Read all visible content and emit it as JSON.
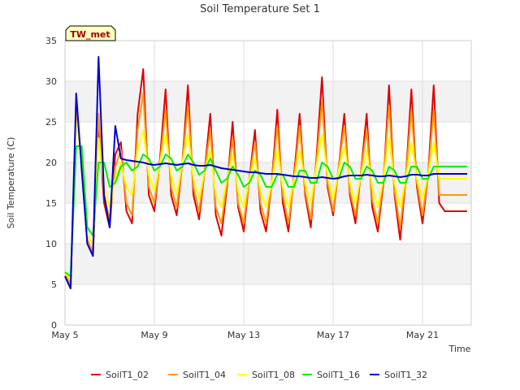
{
  "chart_data": {
    "type": "line",
    "title": "Soil Temperature Set 1",
    "xlabel": "Time",
    "ylabel": "Soil Temperature (C)",
    "site_tag": "TW_met",
    "ylim": [
      0,
      35
    ],
    "yticks": [
      0,
      5,
      10,
      15,
      20,
      25,
      30,
      35
    ],
    "xlim": [
      "2023-05-05",
      "2023-05-23"
    ],
    "xticks": [
      {
        "date": "2023-05-05",
        "label": "May 5"
      },
      {
        "date": "2023-05-09",
        "label": "May 9"
      },
      {
        "date": "2023-05-13",
        "label": "May 13"
      },
      {
        "date": "2023-05-17",
        "label": "May 17"
      },
      {
        "date": "2023-05-21",
        "label": "May 21"
      }
    ],
    "grid": true,
    "legend_position": "bottom",
    "series": [
      {
        "name": "SoilT1_02",
        "color": "#e00000",
        "x": [
          "2023-05-05",
          "2023-05-05T06:00",
          "2023-05-05T12:00",
          "2023-05-05T18:00",
          "2023-05-06",
          "2023-05-06T06:00",
          "2023-05-06T12:00",
          "2023-05-06T18:00",
          "2023-05-07",
          "2023-05-07T06:00",
          "2023-05-07T12:00",
          "2023-05-07T18:00",
          "2023-05-08",
          "2023-05-08T06:00",
          "2023-05-08T12:00",
          "2023-05-08T18:00",
          "2023-05-09",
          "2023-05-09T06:00",
          "2023-05-09T12:00",
          "2023-05-09T18:00",
          "2023-05-10",
          "2023-05-10T06:00",
          "2023-05-10T12:00",
          "2023-05-10T18:00",
          "2023-05-11",
          "2023-05-11T06:00",
          "2023-05-11T12:00",
          "2023-05-11T18:00",
          "2023-05-12",
          "2023-05-12T06:00",
          "2023-05-12T12:00",
          "2023-05-12T18:00",
          "2023-05-13",
          "2023-05-13T06:00",
          "2023-05-13T12:00",
          "2023-05-13T18:00",
          "2023-05-14",
          "2023-05-14T06:00",
          "2023-05-14T12:00",
          "2023-05-14T18:00",
          "2023-05-15",
          "2023-05-15T06:00",
          "2023-05-15T12:00",
          "2023-05-15T18:00",
          "2023-05-16",
          "2023-05-16T06:00",
          "2023-05-16T12:00",
          "2023-05-16T18:00",
          "2023-05-17",
          "2023-05-17T06:00",
          "2023-05-17T12:00",
          "2023-05-17T18:00",
          "2023-05-18",
          "2023-05-18T06:00",
          "2023-05-18T12:00",
          "2023-05-18T18:00",
          "2023-05-19",
          "2023-05-19T06:00",
          "2023-05-19T12:00",
          "2023-05-19T18:00",
          "2023-05-20",
          "2023-05-20T06:00",
          "2023-05-20T12:00",
          "2023-05-20T18:00",
          "2023-05-21",
          "2023-05-21T06:00",
          "2023-05-21T12:00",
          "2023-05-21T18:00",
          "2023-05-22",
          "2023-05-22T06:00",
          "2023-05-22T12:00",
          "2023-05-22T18:00",
          "2023-05-23"
        ],
        "y": [
          6.0,
          4.5,
          27.0,
          20.0,
          10.0,
          8.5,
          25.0,
          15.0,
          12.0,
          21.0,
          22.5,
          14.0,
          12.5,
          26.0,
          31.5,
          16.0,
          14.0,
          20.5,
          29.0,
          16.0,
          13.5,
          20.0,
          29.5,
          16.0,
          13.0,
          19.0,
          26.0,
          13.5,
          11.0,
          17.0,
          25.0,
          14.5,
          11.5,
          18.0,
          24.0,
          14.0,
          11.5,
          17.5,
          26.5,
          15.0,
          11.5,
          18.5,
          26.0,
          16.0,
          12.0,
          20.5,
          30.5,
          17.0,
          13.5,
          19.5,
          26.0,
          16.0,
          12.5,
          19.0,
          26.0,
          14.5,
          11.5,
          17.5,
          29.5,
          16.0,
          10.5,
          18.0,
          29.0,
          17.0,
          12.5,
          18.5,
          29.5,
          15.0,
          14.0,
          14.0,
          14.0,
          14.0,
          14.0
        ]
      },
      {
        "name": "SoilT1_04",
        "color": "#ff9900",
        "x": [
          "2023-05-05",
          "2023-05-05T06:00",
          "2023-05-05T12:00",
          "2023-05-05T18:00",
          "2023-05-06",
          "2023-05-06T06:00",
          "2023-05-06T12:00",
          "2023-05-06T18:00",
          "2023-05-07",
          "2023-05-07T06:00",
          "2023-05-07T12:00",
          "2023-05-07T18:00",
          "2023-05-08",
          "2023-05-08T06:00",
          "2023-05-08T12:00",
          "2023-05-08T18:00",
          "2023-05-09",
          "2023-05-09T06:00",
          "2023-05-09T12:00",
          "2023-05-09T18:00",
          "2023-05-10",
          "2023-05-10T06:00",
          "2023-05-10T12:00",
          "2023-05-10T18:00",
          "2023-05-11",
          "2023-05-11T06:00",
          "2023-05-11T12:00",
          "2023-05-11T18:00",
          "2023-05-12",
          "2023-05-12T06:00",
          "2023-05-12T12:00",
          "2023-05-12T18:00",
          "2023-05-13",
          "2023-05-13T06:00",
          "2023-05-13T12:00",
          "2023-05-13T18:00",
          "2023-05-14",
          "2023-05-14T06:00",
          "2023-05-14T12:00",
          "2023-05-14T18:00",
          "2023-05-15",
          "2023-05-15T06:00",
          "2023-05-15T12:00",
          "2023-05-15T18:00",
          "2023-05-16",
          "2023-05-16T06:00",
          "2023-05-16T12:00",
          "2023-05-16T18:00",
          "2023-05-17",
          "2023-05-17T06:00",
          "2023-05-17T12:00",
          "2023-05-17T18:00",
          "2023-05-18",
          "2023-05-18T06:00",
          "2023-05-18T12:00",
          "2023-05-18T18:00",
          "2023-05-19",
          "2023-05-19T06:00",
          "2023-05-19T12:00",
          "2023-05-19T18:00",
          "2023-05-20",
          "2023-05-20T06:00",
          "2023-05-20T12:00",
          "2023-05-20T18:00",
          "2023-05-21",
          "2023-05-21T06:00",
          "2023-05-21T12:00",
          "2023-05-21T18:00",
          "2023-05-22",
          "2023-05-22T06:00",
          "2023-05-22T12:00",
          "2023-05-22T18:00",
          "2023-05-23"
        ],
        "y": [
          6.5,
          5.0,
          26.5,
          20.0,
          10.5,
          9.0,
          26.0,
          16.0,
          13.0,
          19.5,
          21.5,
          15.0,
          13.5,
          24.0,
          28.5,
          17.0,
          15.0,
          20.0,
          26.5,
          17.0,
          14.5,
          20.0,
          27.0,
          17.0,
          14.0,
          19.0,
          24.0,
          14.5,
          12.5,
          17.5,
          23.0,
          15.0,
          12.5,
          18.0,
          22.5,
          15.0,
          12.5,
          17.5,
          24.5,
          16.0,
          12.5,
          18.0,
          24.5,
          16.5,
          13.0,
          20.0,
          27.5,
          17.5,
          14.0,
          19.5,
          24.5,
          16.5,
          13.5,
          19.0,
          24.0,
          15.5,
          12.5,
          18.0,
          27.0,
          16.5,
          12.0,
          18.0,
          26.5,
          17.5,
          13.5,
          18.5,
          26.5,
          16.0,
          16.0,
          16.0,
          16.0,
          16.0,
          16.0
        ]
      },
      {
        "name": "SoilT1_08",
        "color": "#ffff00",
        "x": [
          "2023-05-05",
          "2023-05-05T06:00",
          "2023-05-05T12:00",
          "2023-05-05T18:00",
          "2023-05-06",
          "2023-05-06T06:00",
          "2023-05-06T12:00",
          "2023-05-06T18:00",
          "2023-05-07",
          "2023-05-07T06:00",
          "2023-05-07T12:00",
          "2023-05-07T18:00",
          "2023-05-08",
          "2023-05-08T06:00",
          "2023-05-08T12:00",
          "2023-05-08T18:00",
          "2023-05-09",
          "2023-05-09T06:00",
          "2023-05-09T12:00",
          "2023-05-09T18:00",
          "2023-05-10",
          "2023-05-10T06:00",
          "2023-05-10T12:00",
          "2023-05-10T18:00",
          "2023-05-11",
          "2023-05-11T06:00",
          "2023-05-11T12:00",
          "2023-05-11T18:00",
          "2023-05-12",
          "2023-05-12T06:00",
          "2023-05-12T12:00",
          "2023-05-12T18:00",
          "2023-05-13",
          "2023-05-13T06:00",
          "2023-05-13T12:00",
          "2023-05-13T18:00",
          "2023-05-14",
          "2023-05-14T06:00",
          "2023-05-14T12:00",
          "2023-05-14T18:00",
          "2023-05-15",
          "2023-05-15T06:00",
          "2023-05-15T12:00",
          "2023-05-15T18:00",
          "2023-05-16",
          "2023-05-16T06:00",
          "2023-05-16T12:00",
          "2023-05-16T18:00",
          "2023-05-17",
          "2023-05-17T06:00",
          "2023-05-17T12:00",
          "2023-05-17T18:00",
          "2023-05-18",
          "2023-05-18T06:00",
          "2023-05-18T12:00",
          "2023-05-18T18:00",
          "2023-05-19",
          "2023-05-19T06:00",
          "2023-05-19T12:00",
          "2023-05-19T18:00",
          "2023-05-20",
          "2023-05-20T06:00",
          "2023-05-20T12:00",
          "2023-05-20T18:00",
          "2023-05-21",
          "2023-05-21T06:00",
          "2023-05-21T12:00",
          "2023-05-21T18:00",
          "2023-05-22",
          "2023-05-22T06:00",
          "2023-05-22T12:00",
          "2023-05-22T18:00",
          "2023-05-23"
        ],
        "y": [
          6.5,
          5.5,
          25.0,
          21.0,
          11.0,
          10.0,
          23.0,
          17.0,
          14.5,
          18.0,
          20.0,
          17.0,
          16.0,
          21.5,
          24.0,
          18.5,
          16.5,
          20.0,
          23.5,
          18.5,
          16.0,
          20.0,
          23.5,
          18.0,
          15.5,
          19.0,
          21.5,
          16.0,
          14.5,
          18.0,
          21.0,
          16.5,
          14.5,
          18.0,
          20.5,
          16.5,
          14.5,
          17.5,
          21.5,
          17.0,
          14.5,
          18.0,
          21.5,
          17.5,
          15.0,
          19.5,
          23.5,
          18.5,
          15.5,
          19.0,
          22.0,
          17.5,
          15.0,
          18.5,
          21.5,
          17.0,
          14.5,
          18.0,
          23.0,
          17.5,
          14.5,
          18.0,
          22.5,
          18.0,
          15.5,
          18.5,
          22.5,
          18.0,
          18.0,
          18.0,
          18.0,
          18.0,
          18.0
        ]
      },
      {
        "name": "SoilT1_16",
        "color": "#00ee00",
        "x": [
          "2023-05-05",
          "2023-05-05T06:00",
          "2023-05-05T12:00",
          "2023-05-05T18:00",
          "2023-05-06",
          "2023-05-06T06:00",
          "2023-05-06T12:00",
          "2023-05-06T18:00",
          "2023-05-07",
          "2023-05-07T06:00",
          "2023-05-07T12:00",
          "2023-05-07T18:00",
          "2023-05-08",
          "2023-05-08T06:00",
          "2023-05-08T12:00",
          "2023-05-08T18:00",
          "2023-05-09",
          "2023-05-09T06:00",
          "2023-05-09T12:00",
          "2023-05-09T18:00",
          "2023-05-10",
          "2023-05-10T06:00",
          "2023-05-10T12:00",
          "2023-05-10T18:00",
          "2023-05-11",
          "2023-05-11T06:00",
          "2023-05-11T12:00",
          "2023-05-11T18:00",
          "2023-05-12",
          "2023-05-12T06:00",
          "2023-05-12T12:00",
          "2023-05-12T18:00",
          "2023-05-13",
          "2023-05-13T06:00",
          "2023-05-13T12:00",
          "2023-05-13T18:00",
          "2023-05-14",
          "2023-05-14T06:00",
          "2023-05-14T12:00",
          "2023-05-14T18:00",
          "2023-05-15",
          "2023-05-15T06:00",
          "2023-05-15T12:00",
          "2023-05-15T18:00",
          "2023-05-16",
          "2023-05-16T06:00",
          "2023-05-16T12:00",
          "2023-05-16T18:00",
          "2023-05-17",
          "2023-05-17T06:00",
          "2023-05-17T12:00",
          "2023-05-17T18:00",
          "2023-05-18",
          "2023-05-18T06:00",
          "2023-05-18T12:00",
          "2023-05-18T18:00",
          "2023-05-19",
          "2023-05-19T06:00",
          "2023-05-19T12:00",
          "2023-05-19T18:00",
          "2023-05-20",
          "2023-05-20T06:00",
          "2023-05-20T12:00",
          "2023-05-20T18:00",
          "2023-05-21",
          "2023-05-21T06:00",
          "2023-05-21T12:00",
          "2023-05-21T18:00",
          "2023-05-22",
          "2023-05-22T06:00",
          "2023-05-22T12:00",
          "2023-05-22T18:00",
          "2023-05-23"
        ],
        "y": [
          6.5,
          6.0,
          22.0,
          22.0,
          12.0,
          11.0,
          20.0,
          20.0,
          17.0,
          17.5,
          19.5,
          20.0,
          19.0,
          19.5,
          21.0,
          20.5,
          19.0,
          19.5,
          21.0,
          20.5,
          19.0,
          19.5,
          21.0,
          20.0,
          18.5,
          19.0,
          20.5,
          19.0,
          17.5,
          18.0,
          19.5,
          18.5,
          17.0,
          17.5,
          19.0,
          18.5,
          17.0,
          17.0,
          18.5,
          18.5,
          17.0,
          17.0,
          19.0,
          19.0,
          17.5,
          17.5,
          20.0,
          19.5,
          18.0,
          18.0,
          20.0,
          19.5,
          18.0,
          18.0,
          19.5,
          19.0,
          17.5,
          17.5,
          19.5,
          19.0,
          17.5,
          17.5,
          19.5,
          19.5,
          18.0,
          18.0,
          19.5,
          19.5,
          19.5,
          19.5,
          19.5,
          19.5,
          19.5
        ]
      },
      {
        "name": "SoilT1_32",
        "color": "#0000cc",
        "x": [
          "2023-05-05",
          "2023-05-05T06:00",
          "2023-05-05T12:00",
          "2023-05-05T18:00",
          "2023-05-06",
          "2023-05-06T06:00",
          "2023-05-06T12:00",
          "2023-05-06T18:00",
          "2023-05-07",
          "2023-05-07T06:00",
          "2023-05-07T12:00",
          "2023-05-07T18:00",
          "2023-05-08",
          "2023-05-08T06:00",
          "2023-05-08T12:00",
          "2023-05-08T18:00",
          "2023-05-09",
          "2023-05-09T06:00",
          "2023-05-09T12:00",
          "2023-05-09T18:00",
          "2023-05-10",
          "2023-05-10T06:00",
          "2023-05-10T12:00",
          "2023-05-10T18:00",
          "2023-05-11",
          "2023-05-11T06:00",
          "2023-05-11T12:00",
          "2023-05-11T18:00",
          "2023-05-12",
          "2023-05-12T06:00",
          "2023-05-12T12:00",
          "2023-05-12T18:00",
          "2023-05-13",
          "2023-05-13T06:00",
          "2023-05-13T12:00",
          "2023-05-13T18:00",
          "2023-05-14",
          "2023-05-14T06:00",
          "2023-05-14T12:00",
          "2023-05-14T18:00",
          "2023-05-15",
          "2023-05-15T06:00",
          "2023-05-15T12:00",
          "2023-05-15T18:00",
          "2023-05-16",
          "2023-05-16T06:00",
          "2023-05-16T12:00",
          "2023-05-16T18:00",
          "2023-05-17",
          "2023-05-17T06:00",
          "2023-05-17T12:00",
          "2023-05-17T18:00",
          "2023-05-18",
          "2023-05-18T06:00",
          "2023-05-18T12:00",
          "2023-05-18T18:00",
          "2023-05-19",
          "2023-05-19T06:00",
          "2023-05-19T12:00",
          "2023-05-19T18:00",
          "2023-05-20",
          "2023-05-20T06:00",
          "2023-05-20T12:00",
          "2023-05-20T18:00",
          "2023-05-21",
          "2023-05-21T06:00",
          "2023-05-21T12:00",
          "2023-05-21T18:00",
          "2023-05-22",
          "2023-05-22T06:00",
          "2023-05-22T12:00",
          "2023-05-22T18:00",
          "2023-05-23"
        ],
        "y": [
          6.0,
          4.5,
          28.5,
          19.0,
          10.0,
          8.5,
          33.0,
          16.0,
          12.0,
          24.5,
          20.5,
          20.3,
          20.2,
          20.1,
          20.0,
          19.8,
          19.7,
          19.8,
          19.9,
          19.8,
          19.7,
          19.8,
          19.9,
          19.7,
          19.6,
          19.6,
          19.7,
          19.5,
          19.3,
          19.2,
          19.1,
          19.0,
          18.9,
          18.8,
          18.8,
          18.7,
          18.6,
          18.6,
          18.6,
          18.5,
          18.4,
          18.3,
          18.3,
          18.2,
          18.1,
          18.1,
          18.2,
          18.1,
          18.0,
          18.1,
          18.3,
          18.4,
          18.4,
          18.4,
          18.5,
          18.4,
          18.3,
          18.3,
          18.4,
          18.3,
          18.2,
          18.3,
          18.5,
          18.5,
          18.4,
          18.4,
          18.6,
          18.6,
          18.6,
          18.6,
          18.6,
          18.6,
          18.6
        ]
      }
    ]
  }
}
